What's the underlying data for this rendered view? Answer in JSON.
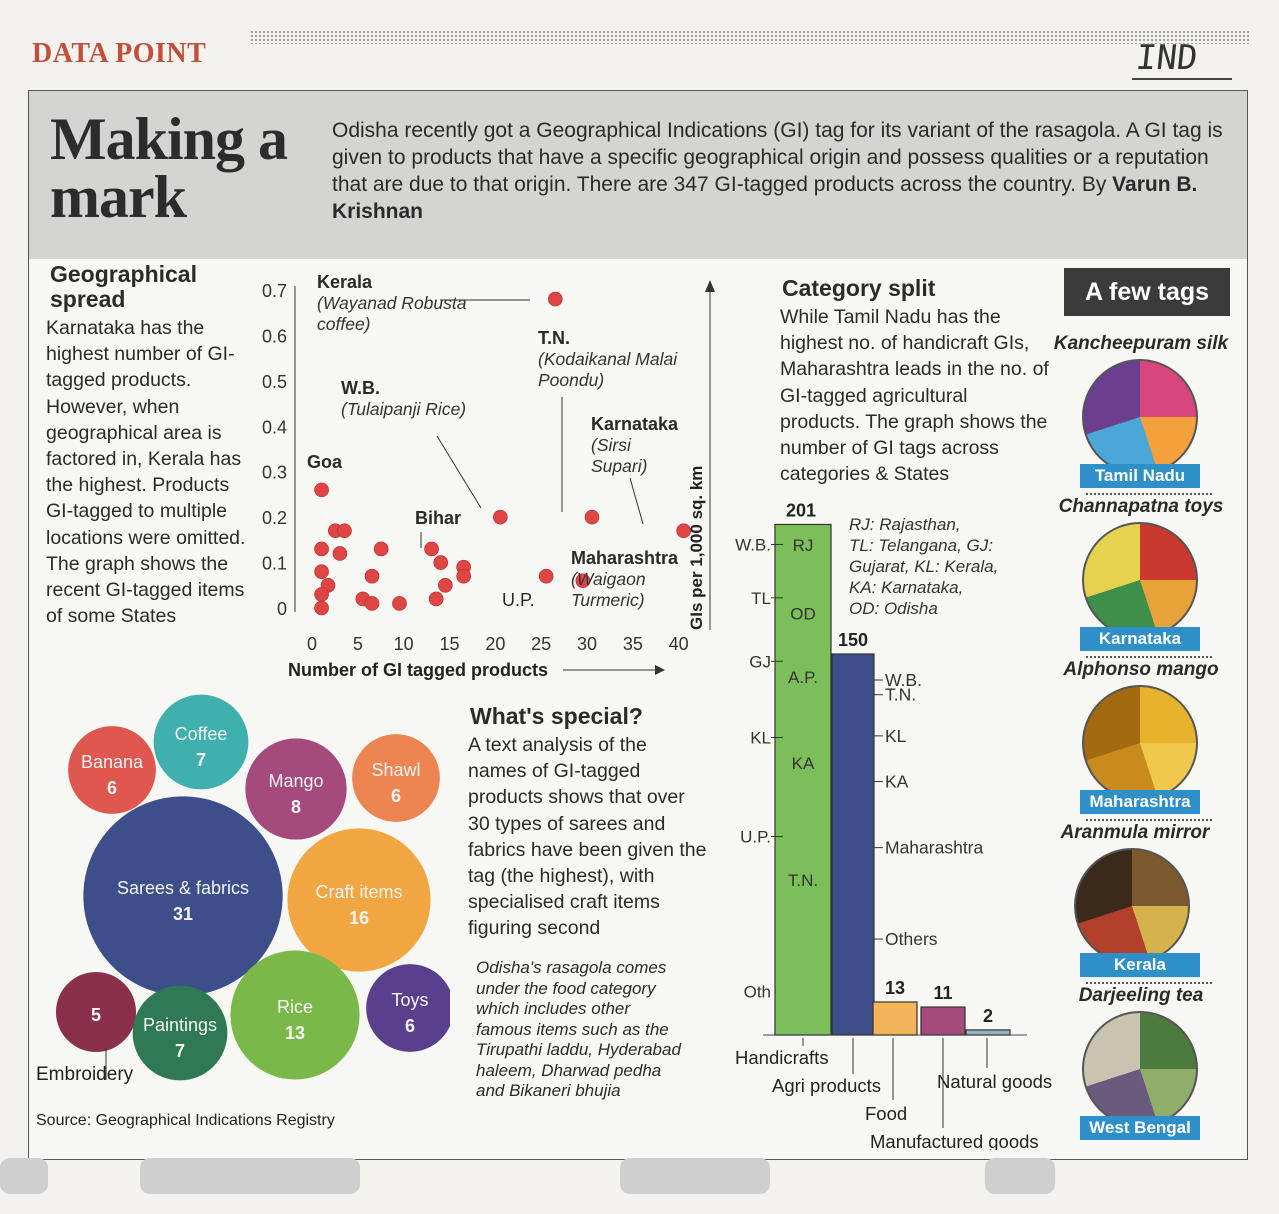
{
  "kicker": "DATA POINT",
  "handwritten": "IND",
  "title_line1": "Making a",
  "title_line2": "mark",
  "standfirst": "Odisha recently got a Geographical Indications (GI) tag for its variant of the rasagola. A GI tag is given to products that have a specific geographical origin and possess qualities or a reputation that are due to that origin. There are 347 GI-tagged products across the country. By ",
  "byline": "Varun B. Krishnan",
  "geo": {
    "heading1": "Geographical",
    "heading2": "spread",
    "text": "Karnataka has the highest number of GI-tagged products. However, when geographical area is factored in, Kerala has the highest. Products GI-tagged to multiple locations were omitted. The graph shows the recent GI-tagged items of some States"
  },
  "special": {
    "heading": "What's special?",
    "text": "A text analysis of the names of GI-tagged products shows that over 30 types of sarees and fabrics have been given the tag (the highest), with specialised craft items figuring second",
    "note": "Odisha's rasagola comes under the food category which includes other famous items such as the Tirupathi laddu, Hyderabad haleem, Dharwad pedha and Bikaneri bhujia"
  },
  "category": {
    "heading": "Category split",
    "text": "While Tamil Nadu has the highest no. of handicraft GIs, Maharashtra leads in the no. of GI-tagged agricultural products. The graph shows the number of GI tags across categories & States"
  },
  "source": "Source: Geographical Indications Registry",
  "tags": {
    "heading": "A few tags",
    "items": [
      {
        "name": "Kancheepuram silk",
        "state": "Tamil Nadu"
      },
      {
        "name": "Channapatna toys",
        "state": "Karnataka"
      },
      {
        "name": "Alphonso mango",
        "state": "Maharashtra"
      },
      {
        "name": "Aranmula mirror",
        "state": "Kerala"
      },
      {
        "name": "Darjeeling tea",
        "state": "West Bengal"
      }
    ]
  },
  "colors": {
    "kicker": "#c0503a",
    "pill": "#2f8fc9",
    "dot": "#e04545",
    "green": "#7cbf5a",
    "navy": "#3d4f8a"
  },
  "chart_data": [
    {
      "type": "scatter",
      "xlabel": "Number of GI tagged products",
      "ylabel": "GIs per 1,000 sq. km",
      "xlim": [
        0,
        42
      ],
      "ylim": [
        0,
        0.7
      ],
      "xticks": [
        0,
        5,
        10,
        15,
        20,
        25,
        30,
        35,
        40
      ],
      "yticks": [
        0,
        0.1,
        0.2,
        0.3,
        0.4,
        0.5,
        0.6,
        0.7
      ],
      "points": [
        {
          "x": 26,
          "y": 0.68,
          "label": "Kerala",
          "sublabel": "(Wayanad Robusta coffee)"
        },
        {
          "x": 30,
          "y": 0.2,
          "label": "T.N.",
          "sublabel": "(Kodaikanal Malai Poondu)"
        },
        {
          "x": 20,
          "y": 0.2,
          "label": "W.B.",
          "sublabel": "(Tulaipanji Rice)"
        },
        {
          "x": 40,
          "y": 0.17,
          "label": "Karnataka",
          "sublabel": "(Sirsi Supari)"
        },
        {
          "x": 0.5,
          "y": 0.26,
          "label": "Goa",
          "sublabel": ""
        },
        {
          "x": 12.5,
          "y": 0.13,
          "label": "Bihar",
          "sublabel": ""
        },
        {
          "x": 29,
          "y": 0.06,
          "label": "Maharashtra",
          "sublabel": "(Waigaon Turmeric)"
        },
        {
          "x": 25,
          "y": 0.07,
          "label": "U.P.",
          "sublabel": ""
        },
        {
          "x": 2,
          "y": 0.17
        },
        {
          "x": 3,
          "y": 0.17
        },
        {
          "x": 0.5,
          "y": 0.13
        },
        {
          "x": 2.5,
          "y": 0.12
        },
        {
          "x": 7,
          "y": 0.13
        },
        {
          "x": 0.5,
          "y": 0.08
        },
        {
          "x": 1.2,
          "y": 0.05
        },
        {
          "x": 6,
          "y": 0.07
        },
        {
          "x": 13.5,
          "y": 0.1
        },
        {
          "x": 16,
          "y": 0.09
        },
        {
          "x": 14,
          "y": 0.05
        },
        {
          "x": 16,
          "y": 0.07
        },
        {
          "x": 0.5,
          "y": 0.03
        },
        {
          "x": 0.5,
          "y": 0.0
        },
        {
          "x": 5,
          "y": 0.02
        },
        {
          "x": 6,
          "y": 0.01
        },
        {
          "x": 9,
          "y": 0.01
        },
        {
          "x": 13,
          "y": 0.02
        }
      ]
    },
    {
      "type": "bubble",
      "bubbles": [
        {
          "label": "Banana",
          "value": 6,
          "color": "#e0574f"
        },
        {
          "label": "Coffee",
          "value": 7,
          "color": "#3fb0ae"
        },
        {
          "label": "Mango",
          "value": 8,
          "color": "#a44a7c"
        },
        {
          "label": "Shawl",
          "value": 6,
          "color": "#ee8452"
        },
        {
          "label": "Sarees & fabrics",
          "value": 31,
          "color": "#3d4f8a"
        },
        {
          "label": "Craft items",
          "value": 16,
          "color": "#f2a641"
        },
        {
          "label": "Embroidery",
          "value": 5,
          "color": "#8a2f4c"
        },
        {
          "label": "Paintings",
          "value": 7,
          "color": "#2f7a55"
        },
        {
          "label": "Rice",
          "value": 13,
          "color": "#7ab84a"
        },
        {
          "label": "Toys",
          "value": 6,
          "color": "#5a3f8e"
        }
      ]
    },
    {
      "type": "bar",
      "categories": [
        "Handicrafts",
        "Agri products",
        "Food",
        "Manufactured goods",
        "Natural goods"
      ],
      "values": [
        201,
        150,
        13,
        11,
        2
      ],
      "bar_colors": [
        "#7cbf5a",
        "#3d4f8a",
        "#f2b35a",
        "#a44a7c",
        "#8fb4c4"
      ],
      "legend": [
        "RJ: Rajasthan,",
        "TL: Telangana, GJ:",
        "Gujarat, KL: Kerala,",
        "KA: Karnataka,",
        "OD: Odisha"
      ],
      "handicraft_breakdown": {
        "inside": [
          {
            "label": "RJ",
            "value": 193
          },
          {
            "label": "OD",
            "value": 166
          },
          {
            "label": "A.P.",
            "value": 141
          },
          {
            "label": "KA",
            "value": 107
          },
          {
            "label": "T.N.",
            "value": 61
          }
        ],
        "outside": [
          {
            "label": "W.B.",
            "value": 201
          },
          {
            "label": "TL",
            "value": 180
          },
          {
            "label": "GJ",
            "value": 155
          },
          {
            "label": "KL",
            "value": 125
          },
          {
            "label": "U.P.",
            "value": 86
          },
          {
            "label": "Oth",
            "value": 25
          }
        ]
      },
      "agri_breakdown": [
        {
          "label": "W.B.",
          "value": 150
        },
        {
          "label": "T.N.",
          "value": 145
        },
        {
          "label": "KL",
          "value": 128
        },
        {
          "label": "KA",
          "value": 110
        },
        {
          "label": "Maharashtra",
          "value": 84
        },
        {
          "label": "Others",
          "value": 48
        }
      ]
    }
  ]
}
